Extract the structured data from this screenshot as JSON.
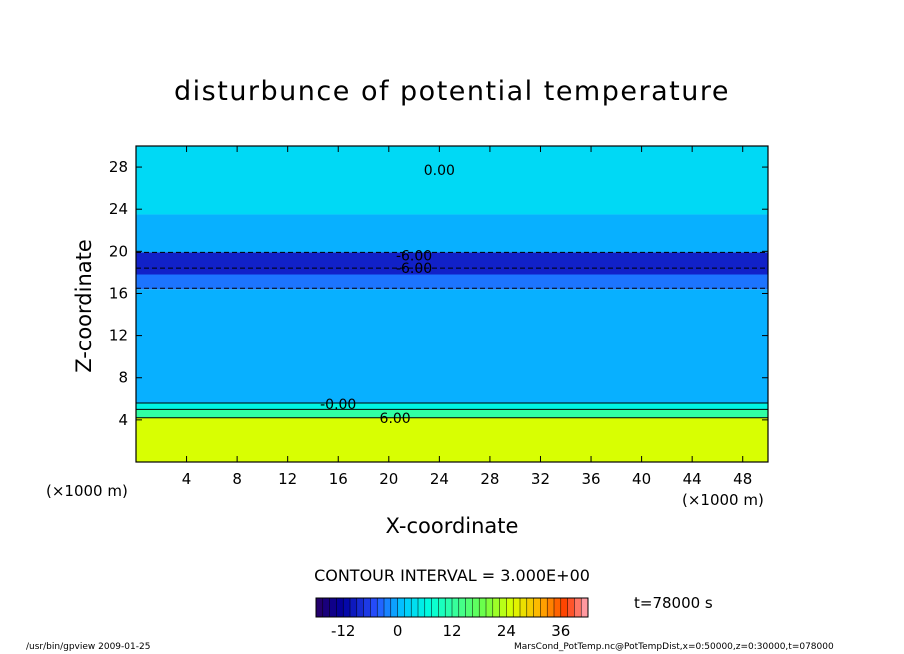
{
  "chart_data": {
    "type": "heatmap",
    "title": "disturbunce of potential temperature",
    "xlabel": "X-coordinate",
    "ylabel": "Z-coordinate",
    "x_unit": "(×1000 m)",
    "y_unit": "(×1000 m)",
    "xlim": [
      0,
      50
    ],
    "ylim": [
      0,
      30
    ],
    "x_ticks": [
      4,
      8,
      12,
      16,
      20,
      24,
      28,
      32,
      36,
      40,
      44,
      48
    ],
    "y_ticks": [
      4,
      8,
      12,
      16,
      20,
      24,
      28
    ],
    "layers": [
      {
        "z": [
          0,
          4.2
        ],
        "value": 25
      },
      {
        "z": [
          4.2,
          5.0
        ],
        "value": 12
      },
      {
        "z": [
          5.0,
          5.6
        ],
        "value": 6
      },
      {
        "z": [
          5.6,
          16.4
        ],
        "value": 0
      },
      {
        "z": [
          16.4,
          17.8
        ],
        "value": -3
      },
      {
        "z": [
          17.8,
          19.9
        ],
        "value": -9
      },
      {
        "z": [
          19.9,
          23.5
        ],
        "value": 0
      },
      {
        "z": [
          23.5,
          30
        ],
        "value": 3
      }
    ],
    "contour_labels": [
      {
        "text": "0.00",
        "x": 24,
        "z": 27.7
      },
      {
        "text": "-6.00",
        "x": 22,
        "z": 19.6
      },
      {
        "text": "-6.00",
        "x": 22,
        "z": 18.4
      },
      {
        "text": "-0.00",
        "x": 16,
        "z": 5.5
      },
      {
        "text": "6.00",
        "x": 20.5,
        "z": 4.2
      }
    ],
    "contour_interval": "CONTOUR INTERVAL = 3.000E+00",
    "colorbar": {
      "min": -18,
      "max": 42,
      "ticks": [
        -12,
        0,
        12,
        24,
        36
      ]
    },
    "time": "t=78000 s"
  },
  "footer": {
    "left": "/usr/bin/gpview  2009-01-25",
    "right": "MarsCond_PotTemp.nc@PotTempDist,x=0:50000,z=0:30000,t=078000"
  }
}
